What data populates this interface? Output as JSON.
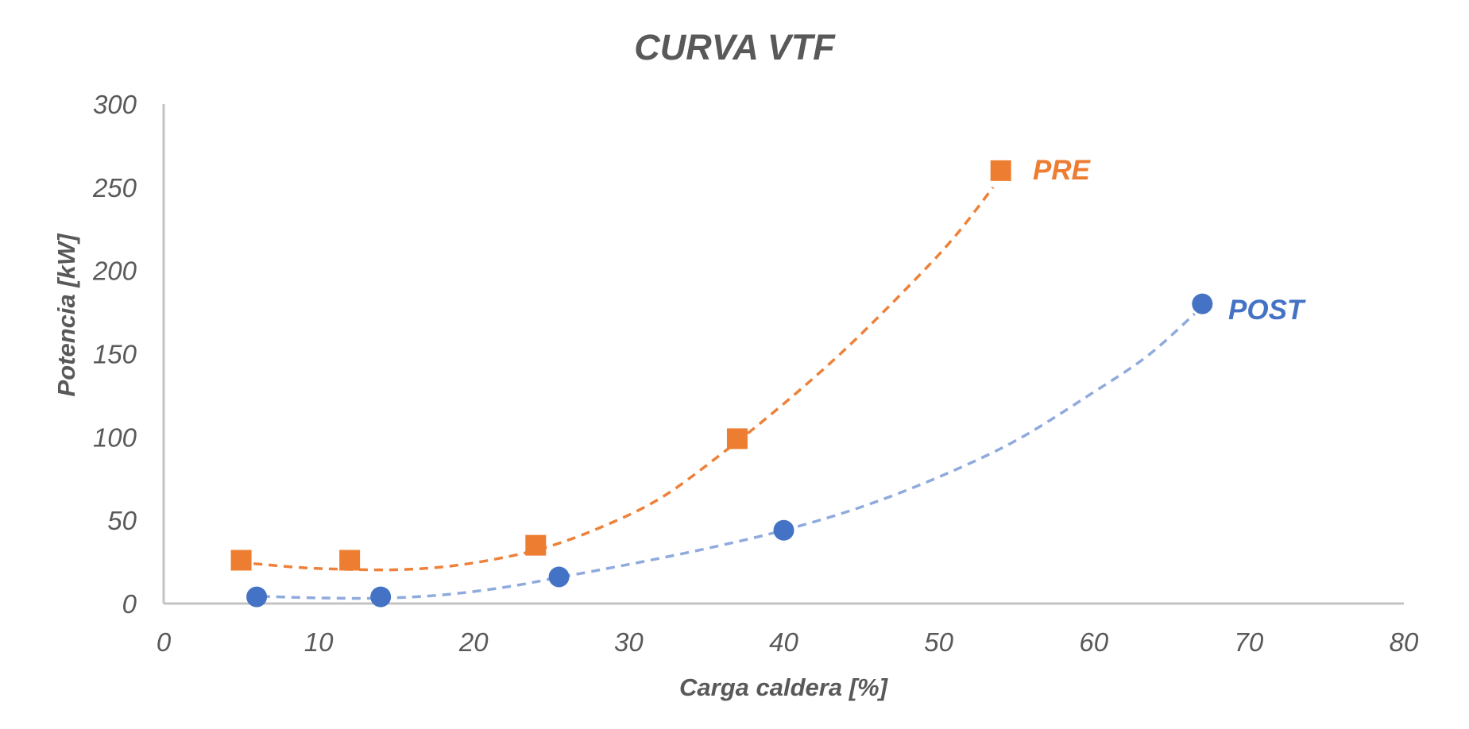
{
  "chart_data": {
    "type": "scatter",
    "title": "CURVA VTF",
    "xlabel": "Carga caldera [%]",
    "ylabel": "Potencia [kW]",
    "xlim": [
      0,
      80
    ],
    "ylim": [
      0,
      300
    ],
    "x_ticks": [
      "0",
      "10",
      "20",
      "30",
      "40",
      "50",
      "60",
      "70",
      "80"
    ],
    "y_ticks": [
      "0",
      "50",
      "100",
      "150",
      "200",
      "250",
      "300"
    ],
    "grid": false,
    "axis_color": "#C3C3C3",
    "text_color": "#595959",
    "legend_position": "labels-next-to-last-point",
    "series": [
      {
        "name": "PRE",
        "marker": "square",
        "marker_color": "#ED7D31",
        "line_color": "#EE8139",
        "line_style": "dashed",
        "points": [
          [
            5,
            26
          ],
          [
            12,
            26
          ],
          [
            24,
            35
          ],
          [
            37,
            99
          ],
          [
            54,
            260
          ]
        ],
        "trendline": [
          [
            5.8,
            24
          ],
          [
            9,
            21.5
          ],
          [
            12,
            20.5
          ],
          [
            15,
            20.3
          ],
          [
            18,
            22
          ],
          [
            21,
            26
          ],
          [
            24.4,
            33
          ],
          [
            28,
            45
          ],
          [
            32,
            63
          ],
          [
            36,
            90
          ],
          [
            40,
            120
          ],
          [
            44,
            153
          ],
          [
            48,
            190
          ],
          [
            51,
            220
          ],
          [
            53.5,
            250
          ]
        ]
      },
      {
        "name": "POST",
        "marker": "circle",
        "marker_color": "#4472C4",
        "line_color": "#8FAADC",
        "line_style": "dashed",
        "points": [
          [
            6,
            4
          ],
          [
            14,
            4
          ],
          [
            25.5,
            16
          ],
          [
            40,
            44
          ],
          [
            67,
            180
          ]
        ],
        "trendline": [
          [
            6.3,
            4.3
          ],
          [
            10,
            3.4
          ],
          [
            14,
            3.2
          ],
          [
            18,
            5.2
          ],
          [
            22,
            9.8
          ],
          [
            25.4,
            15.5
          ],
          [
            30,
            23.5
          ],
          [
            35,
            33
          ],
          [
            40,
            44
          ],
          [
            45,
            58
          ],
          [
            50,
            76
          ],
          [
            55,
            98
          ],
          [
            60,
            127
          ],
          [
            63.5,
            149
          ],
          [
            66.5,
            174
          ]
        ]
      }
    ]
  }
}
